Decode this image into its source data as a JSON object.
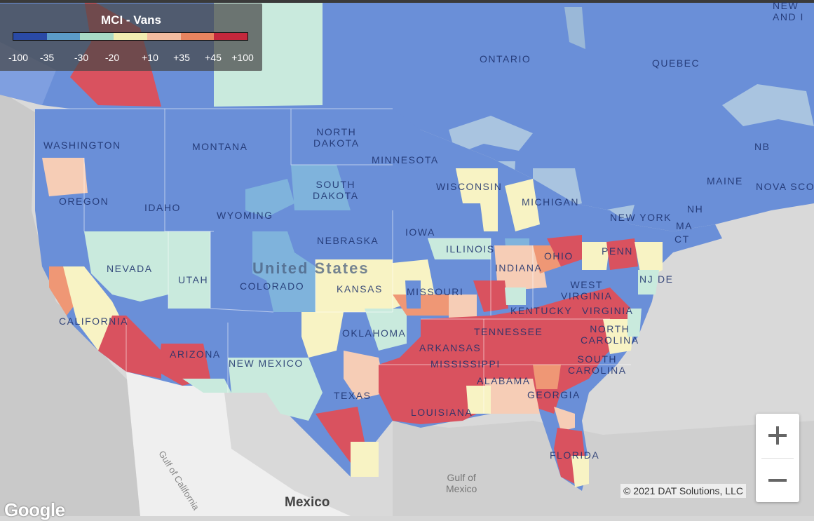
{
  "legend": {
    "title": "MCI - Vans",
    "colors": [
      "#2a4aa6",
      "#5b9bc7",
      "#a8d9c5",
      "#f0ecb0",
      "#f2bca0",
      "#e8845f",
      "#c4283c"
    ],
    "ticks": [
      "-100",
      "-35",
      "-30",
      "-20",
      "+10",
      "+35",
      "+45",
      "+100"
    ]
  },
  "palette": {
    "strong_negative": "#6a8fd8",
    "moderate_negative": "#7fb3dc",
    "slightly_negative": "#c9eadd",
    "neutral": "#f8f3c4",
    "slightly_positive": "#f6cdb6",
    "moderate_positive": "#ef9775",
    "strong_positive": "#d9525f",
    "water": "#a9c4e0",
    "land_outside": "#dadada",
    "mexico": "#efefef"
  },
  "labels": {
    "ontario": "ONTARIO",
    "quebec": "QUEBEC",
    "washington": "WASHINGTON",
    "montana": "MONTANA",
    "north_dakota": "NORTH\nDAKOTA",
    "minnesota": "MINNESOTA",
    "south_dakota": "SOUTH\nDAKOTA",
    "oregon": "OREGON",
    "idaho": "IDAHO",
    "wyoming": "WYOMING",
    "wisconsin": "WISCONSIN",
    "michigan": "MICHIGAN",
    "iowa": "IOWA",
    "nebraska": "NEBRASKA",
    "illinois": "ILLINOIS",
    "indiana": "INDIANA",
    "ohio": "OHIO",
    "penn": "PENN",
    "new_york": "NEW YORK",
    "maine": "MAINE",
    "nb": "NB",
    "nova_scotia": "NOVA SCO",
    "nevada": "NEVADA",
    "utah": "UTAH",
    "colorado": "COLORADO",
    "kansas": "KANSAS",
    "missouri": "MISSOURI",
    "kentucky": "KENTUCKY",
    "west_virginia": "WEST\nVIRGINIA",
    "virginia": "VIRGINIA",
    "nj": "NJ",
    "de": "DE",
    "ct": "CT",
    "ma": "MA",
    "nh": "NH",
    "california": "CALIFORNIA",
    "arizona": "ARIZONA",
    "new_mexico": "NEW MEXICO",
    "oklahoma": "OKLAHOMA",
    "arkansas": "ARKANSAS",
    "tennessee": "TENNESSEE",
    "north_carolina": "NORTH\nCAROLINA",
    "south_carolina": "SOUTH\nCAROLINA",
    "mississippi": "MISSISSIPPI",
    "alabama": "ALABAMA",
    "georgia": "GEORGIA",
    "texas": "TEXAS",
    "louisiana": "LOUISIANA",
    "florida": "FLORIDA",
    "new_and": "NEW\nAND I",
    "united_states": "United States",
    "mexico": "Mexico",
    "gulf_of_mexico": "Gulf of\nMexico",
    "gulf_of_california": "Gulf of California"
  },
  "zoom": {
    "in_icon": "plus-icon",
    "out_icon": "minus-icon"
  },
  "attribution": "© 2021 DAT Solutions, LLC",
  "logo": "Google"
}
